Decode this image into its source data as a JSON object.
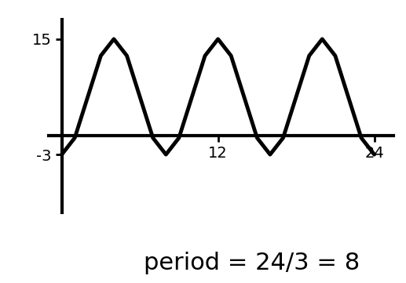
{
  "chart_data": {
    "type": "line",
    "x": [
      0,
      1,
      2,
      3,
      4,
      5,
      6,
      7,
      8,
      9,
      10,
      11,
      12,
      13,
      14,
      15,
      16,
      17,
      18,
      19,
      20,
      21,
      22,
      23,
      24
    ],
    "values": [
      -3,
      -0.4,
      6,
      12.4,
      15,
      12.4,
      6,
      -0.4,
      -3,
      -0.4,
      6,
      12.4,
      15,
      12.4,
      6,
      -0.4,
      -3,
      -0.4,
      6,
      12.4,
      15,
      12.4,
      6,
      -0.4,
      -3
    ],
    "color": "#000000",
    "xlim": [
      -1,
      25.5
    ],
    "xticks": [
      12,
      24
    ],
    "ylim": [
      -12,
      18
    ],
    "yticks": [
      -3,
      15
    ],
    "grid": false,
    "annotation": "period = 24/3 = 8"
  }
}
